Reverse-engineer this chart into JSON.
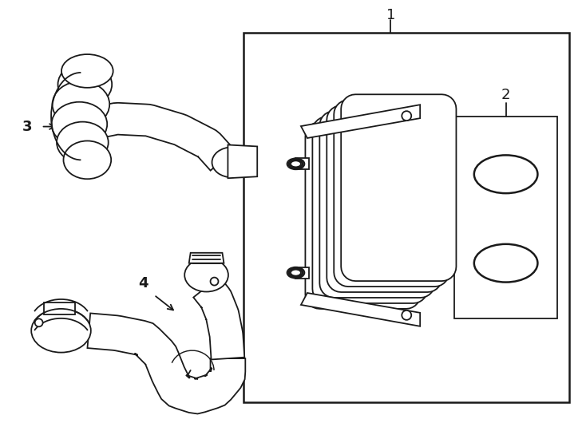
{
  "bg_color": "#ffffff",
  "line_color": "#1a1a1a",
  "lw": 1.3,
  "lw_thick": 1.8,
  "fig_w": 7.34,
  "fig_h": 5.4,
  "dpi": 100,
  "label_1": "1",
  "label_2": "2",
  "label_3": "3",
  "label_4": "4"
}
